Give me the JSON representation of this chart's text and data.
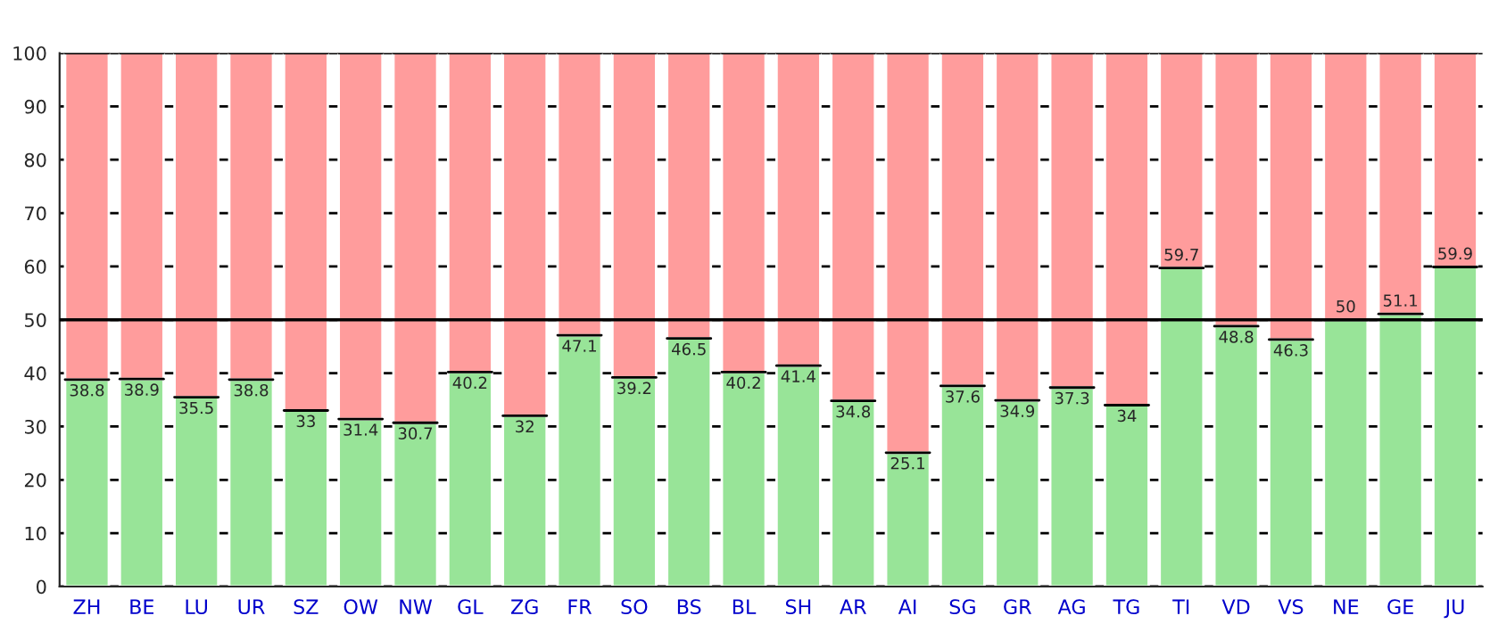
{
  "chart_data": {
    "type": "bar",
    "stacked": true,
    "categories": [
      "ZH",
      "BE",
      "LU",
      "UR",
      "SZ",
      "OW",
      "NW",
      "GL",
      "ZG",
      "FR",
      "SO",
      "BS",
      "BL",
      "SH",
      "AR",
      "AI",
      "SG",
      "GR",
      "AG",
      "TG",
      "TI",
      "VD",
      "VS",
      "NE",
      "GE",
      "JU"
    ],
    "series": [
      {
        "color": "#98e498",
        "values": [
          38.8,
          38.9,
          35.5,
          38.8,
          33,
          31.4,
          30.7,
          40.2,
          32,
          47.1,
          39.2,
          46.5,
          40.2,
          41.4,
          34.8,
          25.1,
          37.6,
          34.9,
          37.3,
          34,
          59.7,
          48.8,
          46.3,
          50,
          51.1,
          59.9
        ],
        "value_labels": [
          "38.8",
          "38.9",
          "35.5",
          "38.8",
          "33",
          "31.4",
          "30.7",
          "40.2",
          "32",
          "47.1",
          "39.2",
          "46.5",
          "40.2",
          "41.4",
          "34.8",
          "25.1",
          "37.6",
          "34.9",
          "37.3",
          "34",
          "59.7",
          "48.8",
          "46.3",
          "50",
          "51.1",
          "59.9"
        ]
      },
      {
        "color": "#ff9c9c",
        "values": [
          61.2,
          61.1,
          64.5,
          61.2,
          67,
          68.6,
          69.3,
          59.8,
          68,
          52.9,
          60.8,
          53.5,
          59.8,
          58.6,
          65.2,
          74.9,
          62.4,
          65.1,
          62.7,
          66,
          40.3,
          51.2,
          53.7,
          50,
          48.9,
          40.1
        ]
      }
    ],
    "ylim": [
      0,
      100
    ],
    "yticks": [
      0,
      10,
      20,
      30,
      40,
      50,
      60,
      70,
      80,
      90,
      100
    ],
    "grid": "y",
    "ref_lines": [
      {
        "axis": "y",
        "value": 50,
        "color": "#000000"
      }
    ]
  }
}
